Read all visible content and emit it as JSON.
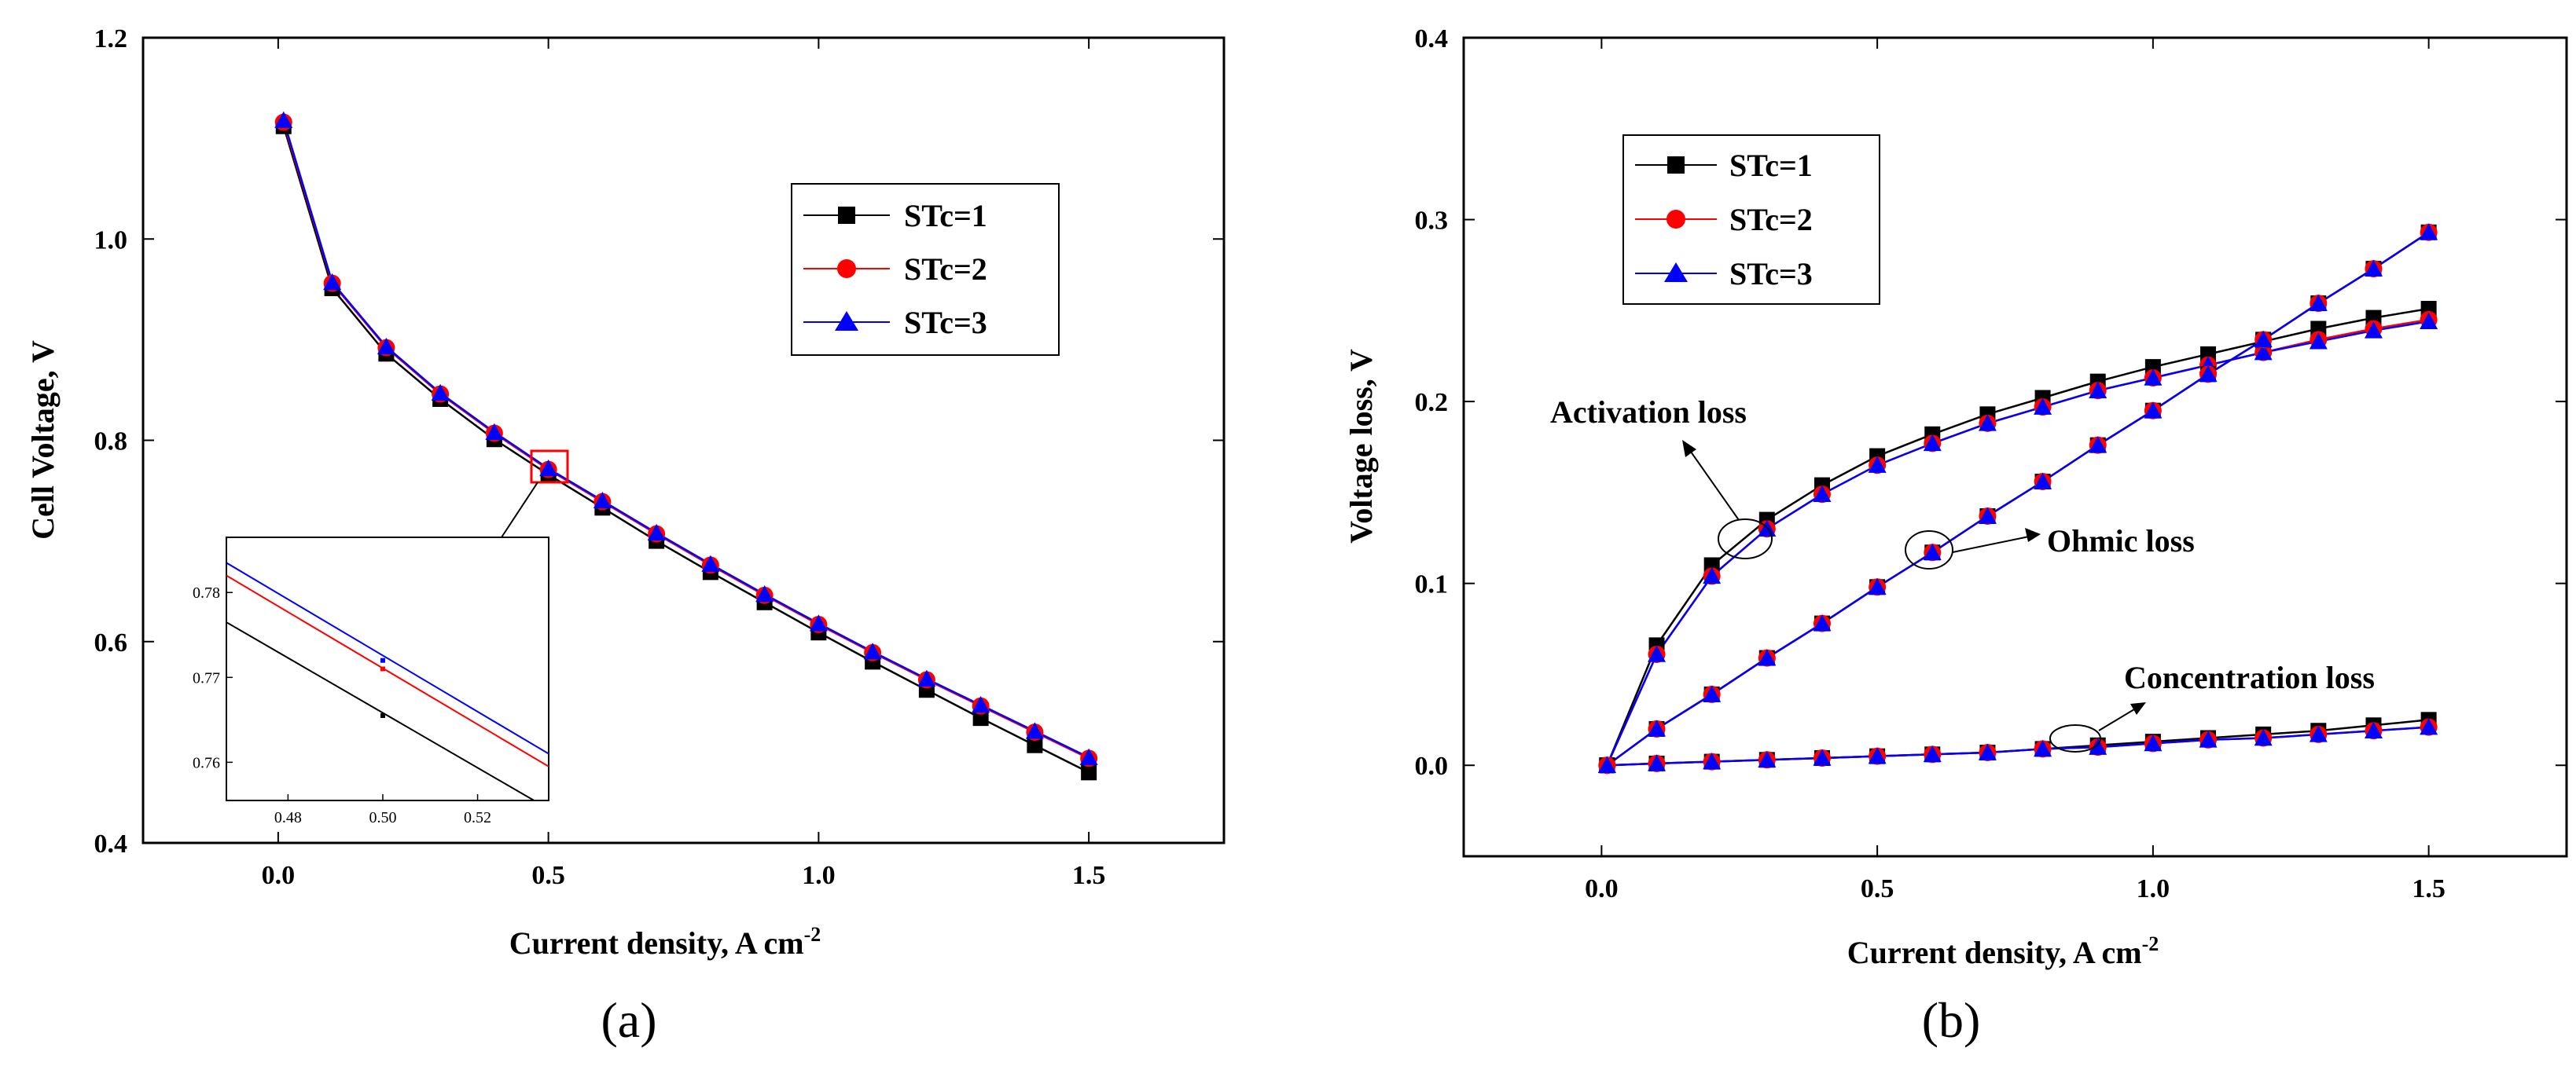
{
  "chart_data": [
    {
      "type": "line",
      "panel_label": "(a)",
      "xlabel": "Current density, A cm",
      "xlabel_sup": "-2",
      "ylabel": "Cell Voltage, V",
      "xlim": [
        -0.25,
        1.75
      ],
      "ylim": [
        0.4,
        1.2
      ],
      "xticks": [
        "0.0",
        "0.5",
        "1.0",
        "1.5"
      ],
      "yticks": [
        "0.4",
        "0.6",
        "0.8",
        "1.0",
        "1.2"
      ],
      "legend_position": "top-right",
      "x": [
        0.01,
        0.1,
        0.2,
        0.3,
        0.4,
        0.5,
        0.6,
        0.7,
        0.8,
        0.9,
        1.0,
        1.1,
        1.2,
        1.3,
        1.4,
        1.5
      ],
      "series": [
        {
          "name": "STc=1",
          "color": "#000000",
          "marker": "square",
          "values": [
            1.112,
            0.951,
            0.886,
            0.841,
            0.801,
            0.766,
            0.733,
            0.7,
            0.669,
            0.639,
            0.609,
            0.58,
            0.552,
            0.524,
            0.497,
            0.47
          ]
        },
        {
          "name": "STc=2",
          "color": "#ff0000",
          "marker": "circle",
          "values": [
            1.116,
            0.956,
            0.892,
            0.846,
            0.807,
            0.771,
            0.739,
            0.707,
            0.676,
            0.646,
            0.617,
            0.589,
            0.562,
            0.536,
            0.51,
            0.484
          ]
        },
        {
          "name": "STc=3",
          "color": "#0000ff",
          "marker": "triangle",
          "values": [
            1.118,
            0.957,
            0.893,
            0.847,
            0.808,
            0.772,
            0.74,
            0.708,
            0.677,
            0.647,
            0.618,
            0.59,
            0.563,
            0.537,
            0.511,
            0.485
          ]
        }
      ],
      "inset": {
        "xlim": [
          0.467,
          0.535
        ],
        "ylim": [
          0.7555,
          0.7865
        ],
        "xticks": [
          "0.48",
          "0.50",
          "0.52"
        ],
        "yticks": [
          "0.76",
          "0.77",
          "0.78"
        ],
        "series": [
          {
            "name": "STc=1",
            "color": "#000000",
            "x": [
              0.467,
              0.535
            ],
            "y": [
              0.7765,
              0.7545
            ],
            "point": [
              0.5,
              0.7655
            ]
          },
          {
            "name": "STc=2",
            "color": "#ff0000",
            "x": [
              0.467,
              0.535
            ],
            "y": [
              0.782,
              0.7595
            ],
            "point": [
              0.5,
              0.771
            ]
          },
          {
            "name": "STc=3",
            "color": "#0000ff",
            "x": [
              0.467,
              0.535
            ],
            "y": [
              0.7835,
              0.761
            ],
            "point": [
              0.5,
              0.772
            ]
          }
        ]
      }
    },
    {
      "type": "line",
      "panel_label": "(b)",
      "xlabel": "Current density, A cm",
      "xlabel_sup": "-2",
      "ylabel": "Voltage loss, V",
      "xlim": [
        -0.25,
        1.75
      ],
      "ylim": [
        -0.05,
        0.4
      ],
      "xticks": [
        "0.0",
        "0.5",
        "1.0",
        "1.5"
      ],
      "yticks": [
        "0.0",
        "0.1",
        "0.2",
        "0.3",
        "0.4"
      ],
      "legend_position": "top-left",
      "annotations": [
        "Activation loss",
        "Ohmic loss",
        "Concentration loss"
      ],
      "x": [
        0.01,
        0.1,
        0.2,
        0.3,
        0.4,
        0.5,
        0.6,
        0.7,
        0.8,
        0.9,
        1.0,
        1.1,
        1.2,
        1.3,
        1.4,
        1.5
      ],
      "series": [
        {
          "name": "STc=1",
          "group": "Activation loss",
          "color": "#000000",
          "marker": "square",
          "values": [
            0.0,
            0.066,
            0.11,
            0.135,
            0.154,
            0.17,
            0.182,
            0.193,
            0.202,
            0.211,
            0.219,
            0.226,
            0.233,
            0.24,
            0.246,
            0.251
          ]
        },
        {
          "name": "STc=2",
          "group": "Activation loss",
          "color": "#ff0000",
          "marker": "circle",
          "values": [
            0.0,
            0.061,
            0.104,
            0.13,
            0.149,
            0.165,
            0.177,
            0.188,
            0.197,
            0.206,
            0.213,
            0.22,
            0.227,
            0.234,
            0.24,
            0.245
          ]
        },
        {
          "name": "STc=3",
          "group": "Activation loss",
          "color": "#0000ff",
          "marker": "triangle",
          "values": [
            0.0,
            0.061,
            0.104,
            0.13,
            0.149,
            0.165,
            0.177,
            0.188,
            0.197,
            0.206,
            0.213,
            0.22,
            0.227,
            0.233,
            0.239,
            0.244
          ]
        },
        {
          "name": "STc=1",
          "group": "Ohmic loss",
          "color": "#000000",
          "marker": "square",
          "values": [
            0.0,
            0.02,
            0.039,
            0.059,
            0.078,
            0.098,
            0.117,
            0.137,
            0.156,
            0.176,
            0.195,
            0.215,
            0.234,
            0.254,
            0.273,
            0.293
          ]
        },
        {
          "name": "STc=2",
          "group": "Ohmic loss",
          "color": "#ff0000",
          "marker": "circle",
          "values": [
            0.0,
            0.02,
            0.039,
            0.059,
            0.078,
            0.098,
            0.117,
            0.137,
            0.156,
            0.176,
            0.195,
            0.215,
            0.234,
            0.254,
            0.273,
            0.293
          ]
        },
        {
          "name": "STc=3",
          "group": "Ohmic loss",
          "color": "#0000ff",
          "marker": "triangle",
          "values": [
            0.0,
            0.02,
            0.039,
            0.059,
            0.078,
            0.098,
            0.117,
            0.137,
            0.156,
            0.176,
            0.195,
            0.215,
            0.234,
            0.254,
            0.273,
            0.293
          ]
        },
        {
          "name": "STc=1",
          "group": "Concentration loss",
          "color": "#000000",
          "marker": "square",
          "values": [
            0.0,
            0.001,
            0.002,
            0.003,
            0.004,
            0.005,
            0.006,
            0.007,
            0.009,
            0.011,
            0.013,
            0.015,
            0.017,
            0.019,
            0.022,
            0.025
          ]
        },
        {
          "name": "STc=2",
          "group": "Concentration loss",
          "color": "#ff0000",
          "marker": "circle",
          "values": [
            0.0,
            0.001,
            0.002,
            0.003,
            0.004,
            0.005,
            0.006,
            0.007,
            0.009,
            0.01,
            0.012,
            0.014,
            0.015,
            0.017,
            0.019,
            0.021
          ]
        },
        {
          "name": "STc=3",
          "group": "Concentration loss",
          "color": "#0000ff",
          "marker": "triangle",
          "values": [
            0.0,
            0.001,
            0.002,
            0.003,
            0.004,
            0.005,
            0.006,
            0.007,
            0.009,
            0.01,
            0.012,
            0.014,
            0.015,
            0.017,
            0.019,
            0.021
          ]
        }
      ]
    }
  ]
}
